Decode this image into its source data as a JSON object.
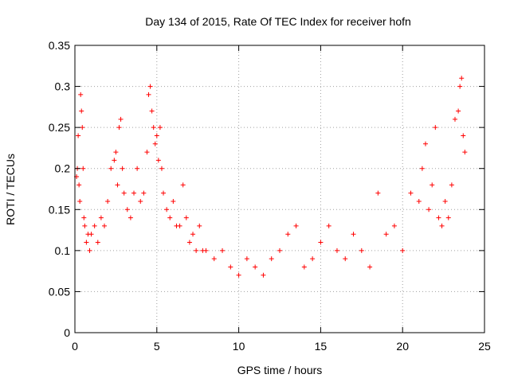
{
  "chart_data": {
    "type": "scatter",
    "title": "Day 134 of 2015, Rate Of TEC Index for receiver hofn",
    "xlabel": "GPS time / hours",
    "ylabel": "ROTI / TECUs",
    "xlim": [
      0,
      25
    ],
    "ylim": [
      0,
      0.35
    ],
    "x_ticks": [
      "0",
      "5",
      "10",
      "15",
      "20",
      "25"
    ],
    "y_ticks": [
      "0",
      "0.05",
      "0.1",
      "0.15",
      "0.2",
      "0.25",
      "0.3",
      "0.35"
    ],
    "grid": true,
    "marker": "+",
    "color": "#ff0000",
    "series": [
      {
        "x": [
          0.1,
          0.15,
          0.2,
          0.25,
          0.3,
          0.35,
          0.4,
          0.45,
          0.5,
          0.55,
          0.6,
          0.7,
          0.8,
          0.9,
          1.0,
          1.2,
          1.4,
          1.6,
          1.8,
          2.0,
          2.2,
          2.4,
          2.5,
          2.6,
          2.7,
          2.8,
          2.9,
          3.0,
          3.2,
          3.4,
          3.6,
          3.8,
          4.0,
          4.2,
          4.4,
          4.5,
          4.6,
          4.7,
          4.8,
          4.9,
          5.0,
          5.1,
          5.2,
          5.3,
          5.4,
          5.6,
          5.8,
          6.0,
          6.2,
          6.4,
          6.6,
          6.8,
          7.0,
          7.2,
          7.4,
          7.6,
          7.8,
          8.0,
          8.5,
          9.0,
          9.5,
          10.0,
          10.5,
          11.0,
          11.5,
          12.0,
          12.5,
          13.0,
          13.5,
          14.0,
          14.5,
          15.0,
          15.5,
          16.0,
          16.5,
          17.0,
          17.5,
          18.0,
          18.5,
          19.0,
          19.5,
          20.0,
          20.5,
          21.0,
          21.2,
          21.4,
          21.6,
          21.8,
          22.0,
          22.2,
          22.4,
          22.6,
          22.8,
          23.0,
          23.2,
          23.4,
          23.5,
          23.6,
          23.7,
          23.8
        ],
        "y": [
          0.19,
          0.2,
          0.24,
          0.18,
          0.16,
          0.29,
          0.27,
          0.25,
          0.2,
          0.14,
          0.13,
          0.11,
          0.12,
          0.1,
          0.12,
          0.13,
          0.11,
          0.14,
          0.13,
          0.16,
          0.2,
          0.21,
          0.22,
          0.18,
          0.25,
          0.26,
          0.2,
          0.17,
          0.15,
          0.14,
          0.17,
          0.2,
          0.16,
          0.17,
          0.22,
          0.29,
          0.3,
          0.27,
          0.25,
          0.23,
          0.24,
          0.21,
          0.25,
          0.2,
          0.17,
          0.15,
          0.14,
          0.16,
          0.13,
          0.13,
          0.18,
          0.14,
          0.11,
          0.12,
          0.1,
          0.13,
          0.1,
          0.1,
          0.09,
          0.1,
          0.08,
          0.07,
          0.09,
          0.08,
          0.07,
          0.09,
          0.1,
          0.12,
          0.13,
          0.08,
          0.09,
          0.11,
          0.13,
          0.1,
          0.09,
          0.12,
          0.1,
          0.08,
          0.17,
          0.12,
          0.13,
          0.1,
          0.17,
          0.16,
          0.2,
          0.23,
          0.15,
          0.18,
          0.25,
          0.14,
          0.13,
          0.16,
          0.14,
          0.18,
          0.26,
          0.27,
          0.3,
          0.31,
          0.24,
          0.22
        ]
      }
    ]
  }
}
